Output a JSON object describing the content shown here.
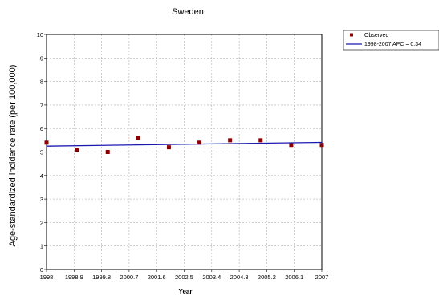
{
  "chart_data": {
    "type": "scatter",
    "title": "Sweden",
    "xlabel": "Year",
    "ylabel": "Age-standardized incidence rate (per 100,000)",
    "xlim": [
      1998,
      2007
    ],
    "ylim": [
      0,
      10
    ],
    "x_tick_labels": [
      "1998",
      "1998.9",
      "1999.8",
      "2000.7",
      "2001.6",
      "2002.5",
      "2003.4",
      "2004.3",
      "2005.2",
      "2006.1",
      "2007"
    ],
    "y_tick_labels": [
      "0",
      "1",
      "2",
      "3",
      "4",
      "5",
      "6",
      "7",
      "8",
      "9",
      "10"
    ],
    "grid": true,
    "legend_position": "top-right",
    "series": [
      {
        "name": "Observed",
        "kind": "scatter",
        "color": "#8b0000",
        "x": [
          1998,
          1999,
          2000,
          2001,
          2002,
          2003,
          2004,
          2005,
          2006,
          2007
        ],
        "y": [
          5.4,
          5.1,
          5.0,
          5.6,
          5.2,
          5.4,
          5.5,
          5.5,
          5.3,
          5.3
        ]
      },
      {
        "name": "1998-2007 APC  = 0.34",
        "kind": "line",
        "color": "#1a1ab0",
        "x": [
          1998,
          2007
        ],
        "y": [
          5.25,
          5.41
        ]
      }
    ]
  }
}
